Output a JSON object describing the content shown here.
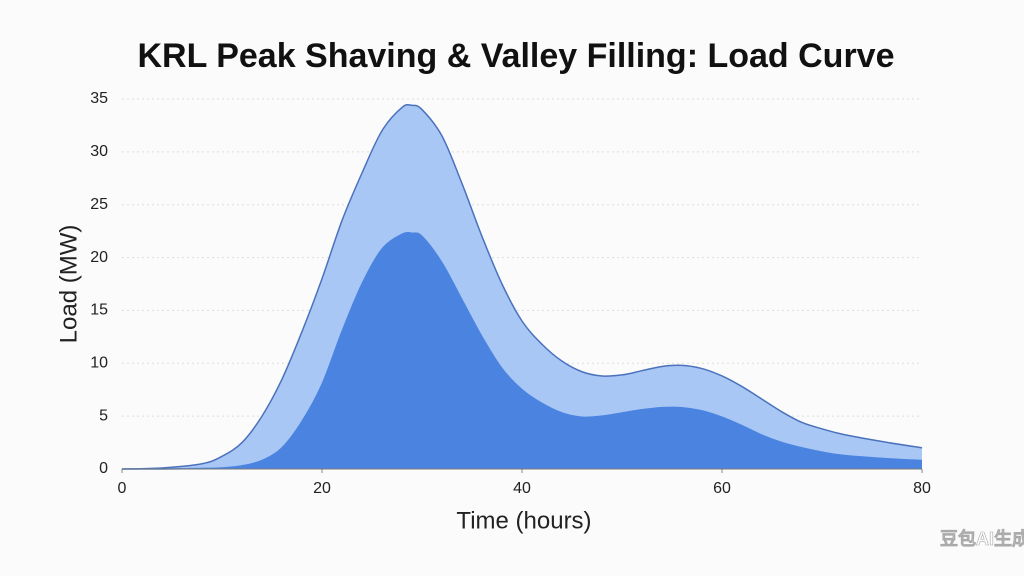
{
  "chart_data": {
    "type": "area",
    "title": "KRL Peak Shaving & Valley Filling: Load Curve",
    "x_label": "Time (hours)",
    "y_label": "Load (MW)",
    "x": [
      0,
      4,
      8,
      10,
      12,
      14,
      16,
      18,
      20,
      22,
      24,
      26,
      28,
      29,
      30,
      32,
      34,
      36,
      38,
      40,
      42,
      44,
      46,
      48,
      50,
      52,
      54,
      56,
      58,
      60,
      62,
      64,
      66,
      68,
      70,
      72,
      76,
      80
    ],
    "series": [
      {
        "color": "#a9c7f4",
        "line_color": "#4a72bd",
        "values": [
          0,
          0.1,
          0.5,
          1.2,
          2.5,
          5,
          8.5,
          13,
          18,
          23.5,
          28,
          32,
          34.2,
          34.4,
          34,
          31.5,
          27,
          22,
          17.5,
          14,
          11.8,
          10.2,
          9.2,
          8.8,
          8.9,
          9.3,
          9.7,
          9.8,
          9.5,
          8.8,
          7.8,
          6.6,
          5.4,
          4.4,
          3.8,
          3.3,
          2.6,
          2.0
        ]
      },
      {
        "color": "#4a84e0",
        "line_color": "#4a84e0",
        "values": [
          0,
          0,
          0.05,
          0.1,
          0.3,
          0.8,
          2,
          4.5,
          8,
          13,
          17.5,
          20.8,
          22.2,
          22.3,
          22,
          19.5,
          16,
          12.5,
          9.5,
          7.5,
          6.2,
          5.3,
          4.9,
          5,
          5.3,
          5.6,
          5.8,
          5.8,
          5.5,
          4.9,
          4.1,
          3.2,
          2.5,
          2,
          1.6,
          1.3,
          1,
          0.8
        ]
      }
    ],
    "xlim": [
      0,
      80
    ],
    "xticks": [
      0,
      20,
      40,
      60,
      80
    ],
    "ylim": [
      0,
      35
    ],
    "yticks": [
      0,
      5,
      10,
      15,
      20,
      25,
      30,
      35
    ],
    "grid": true
  },
  "watermark": "豆包AI生成"
}
